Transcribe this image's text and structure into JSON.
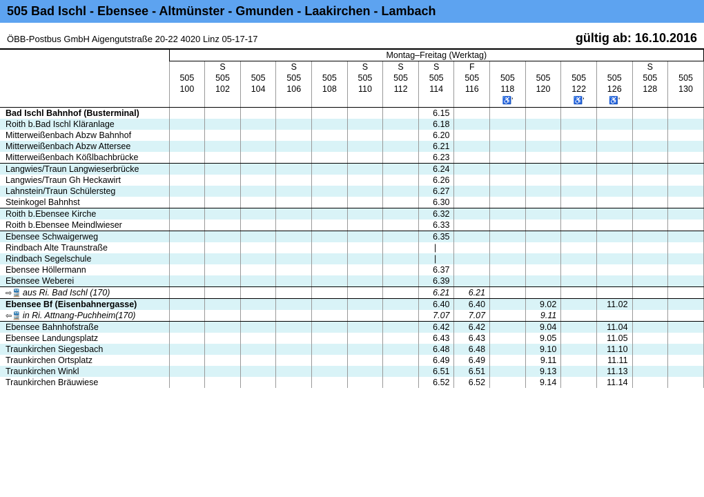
{
  "title": "505 Bad Ischl - Ebensee - Altmünster - Gmunden - Laakirchen - Lambach",
  "operator": "ÖBB-Postbus GmbH Aigengutstraße 20-22 4020 Linz 05-17-17",
  "valid_from": "gültig ab: 16.10.2016",
  "day_header": "Montag–Freitag (Werktag)",
  "route": "505",
  "trips": [
    {
      "suffix": "100",
      "tag": ""
    },
    {
      "suffix": "102",
      "tag": "S"
    },
    {
      "suffix": "104",
      "tag": ""
    },
    {
      "suffix": "106",
      "tag": "S"
    },
    {
      "suffix": "108",
      "tag": ""
    },
    {
      "suffix": "110",
      "tag": "S"
    },
    {
      "suffix": "112",
      "tag": "S"
    },
    {
      "suffix": "114",
      "tag": "S"
    },
    {
      "suffix": "116",
      "tag": "F"
    },
    {
      "suffix": "118",
      "tag": "",
      "wc": true
    },
    {
      "suffix": "120",
      "tag": ""
    },
    {
      "suffix": "122",
      "tag": "",
      "wc": true
    },
    {
      "suffix": "126",
      "tag": "",
      "wc": true
    },
    {
      "suffix": "128",
      "tag": "S"
    },
    {
      "suffix": "130",
      "tag": ""
    }
  ],
  "stops": [
    {
      "name": "Bad Ischl Bahnhof (Busterminal)",
      "bold": true,
      "sep": false,
      "stripe": false,
      "t": [
        "",
        "",
        "",
        "",
        "",
        "",
        "",
        "6.15",
        "",
        "",
        "",
        "",
        "",
        "",
        ""
      ]
    },
    {
      "name": "Roith b.Bad Ischl Kläranlage",
      "stripe": true,
      "t": [
        "",
        "",
        "",
        "",
        "",
        "",
        "",
        "6.18",
        "",
        "",
        "",
        "",
        "",
        "",
        ""
      ]
    },
    {
      "name": "Mitterweißenbach Abzw Bahnhof",
      "t": [
        "",
        "",
        "",
        "",
        "",
        "",
        "",
        "6.20",
        "",
        "",
        "",
        "",
        "",
        "",
        ""
      ]
    },
    {
      "name": "Mitterweißenbach Abzw Attersee",
      "stripe": true,
      "t": [
        "",
        "",
        "",
        "",
        "",
        "",
        "",
        "6.21",
        "",
        "",
        "",
        "",
        "",
        "",
        ""
      ]
    },
    {
      "name": "Mitterweißenbach Kößlbachbrücke",
      "sep": true,
      "t": [
        "",
        "",
        "",
        "",
        "",
        "",
        "",
        "6.23",
        "",
        "",
        "",
        "",
        "",
        "",
        ""
      ]
    },
    {
      "name": "Langwies/Traun Langwieserbrücke",
      "stripe": true,
      "t": [
        "",
        "",
        "",
        "",
        "",
        "",
        "",
        "6.24",
        "",
        "",
        "",
        "",
        "",
        "",
        ""
      ]
    },
    {
      "name": "Langwies/Traun Gh Heckawirt",
      "t": [
        "",
        "",
        "",
        "",
        "",
        "",
        "",
        "6.26",
        "",
        "",
        "",
        "",
        "",
        "",
        ""
      ]
    },
    {
      "name": "Lahnstein/Traun Schülersteg",
      "stripe": true,
      "t": [
        "",
        "",
        "",
        "",
        "",
        "",
        "",
        "6.27",
        "",
        "",
        "",
        "",
        "",
        "",
        ""
      ]
    },
    {
      "name": "Steinkogel Bahnhst",
      "sep": true,
      "t": [
        "",
        "",
        "",
        "",
        "",
        "",
        "",
        "6.30",
        "",
        "",
        "",
        "",
        "",
        "",
        ""
      ]
    },
    {
      "name": "Roith b.Ebensee Kirche",
      "stripe": true,
      "t": [
        "",
        "",
        "",
        "",
        "",
        "",
        "",
        "6.32",
        "",
        "",
        "",
        "",
        "",
        "",
        ""
      ]
    },
    {
      "name": "Roith b.Ebensee Meindlwieser",
      "sep": true,
      "t": [
        "",
        "",
        "",
        "",
        "",
        "",
        "",
        "6.33",
        "",
        "",
        "",
        "",
        "",
        "",
        ""
      ]
    },
    {
      "name": "Ebensee Schwaigerweg",
      "stripe": true,
      "t": [
        "",
        "",
        "",
        "",
        "",
        "",
        "",
        "6.35",
        "",
        "",
        "",
        "",
        "",
        "",
        ""
      ]
    },
    {
      "name": "Rindbach Alte Traunstraße",
      "t": [
        "",
        "",
        "",
        "",
        "",
        "",
        "",
        "|",
        "",
        "",
        "",
        "",
        "",
        "",
        ""
      ]
    },
    {
      "name": "Rindbach Segelschule",
      "stripe": true,
      "t": [
        "",
        "",
        "",
        "",
        "",
        "",
        "",
        "|",
        "",
        "",
        "",
        "",
        "",
        "",
        ""
      ]
    },
    {
      "name": "Ebensee Höllermann",
      "t": [
        "",
        "",
        "",
        "",
        "",
        "",
        "",
        "6.37",
        "",
        "",
        "",
        "",
        "",
        "",
        ""
      ]
    },
    {
      "name": "Ebensee Weberei",
      "sep": true,
      "stripe": true,
      "t": [
        "",
        "",
        "",
        "",
        "",
        "",
        "",
        "6.39",
        "",
        "",
        "",
        "",
        "",
        "",
        ""
      ]
    },
    {
      "name": "aus Ri. Bad Ischl (170)",
      "italic": true,
      "sep": true,
      "arrow": "⇨🚆",
      "t": [
        "",
        "",
        "",
        "",
        "",
        "",
        "",
        "6.21",
        "6.21",
        "",
        "",
        "",
        "",
        "",
        ""
      ]
    },
    {
      "name": "Ebensee Bf (Eisenbahnergasse)",
      "bold": true,
      "stripe": true,
      "t": [
        "",
        "",
        "",
        "",
        "",
        "",
        "",
        "6.40",
        "6.40",
        "",
        "9.02",
        "",
        "11.02",
        "",
        ""
      ]
    },
    {
      "name": "in Ri. Attnang-Puchheim(170)",
      "italic": true,
      "sep": true,
      "arrow": "⇦🚆",
      "t": [
        "",
        "",
        "",
        "",
        "",
        "",
        "",
        "7.07",
        "7.07",
        "",
        "9.11",
        "",
        "",
        "",
        ""
      ]
    },
    {
      "name": "Ebensee Bahnhofstraße",
      "stripe": true,
      "t": [
        "",
        "",
        "",
        "",
        "",
        "",
        "",
        "6.42",
        "6.42",
        "",
        "9.04",
        "",
        "11.04",
        "",
        ""
      ]
    },
    {
      "name": "Ebensee Landungsplatz",
      "t": [
        "",
        "",
        "",
        "",
        "",
        "",
        "",
        "6.43",
        "6.43",
        "",
        "9.05",
        "",
        "11.05",
        "",
        ""
      ]
    },
    {
      "name": "Traunkirchen Siegesbach",
      "stripe": true,
      "t": [
        "",
        "",
        "",
        "",
        "",
        "",
        "",
        "6.48",
        "6.48",
        "",
        "9.10",
        "",
        "11.10",
        "",
        ""
      ]
    },
    {
      "name": "Traunkirchen Ortsplatz",
      "t": [
        "",
        "",
        "",
        "",
        "",
        "",
        "",
        "6.49",
        "6.49",
        "",
        "9.11",
        "",
        "11.11",
        "",
        ""
      ]
    },
    {
      "name": "Traunkirchen Winkl",
      "stripe": true,
      "t": [
        "",
        "",
        "",
        "",
        "",
        "",
        "",
        "6.51",
        "6.51",
        "",
        "9.13",
        "",
        "11.13",
        "",
        ""
      ]
    },
    {
      "name": "Traunkirchen Bräuwiese",
      "t": [
        "",
        "",
        "",
        "",
        "",
        "",
        "",
        "6.52",
        "6.52",
        "",
        "9.14",
        "",
        "11.14",
        "",
        ""
      ]
    }
  ],
  "colors": {
    "header_bg": "#5da3f0",
    "stripe_bg": "#d9f3f7"
  }
}
